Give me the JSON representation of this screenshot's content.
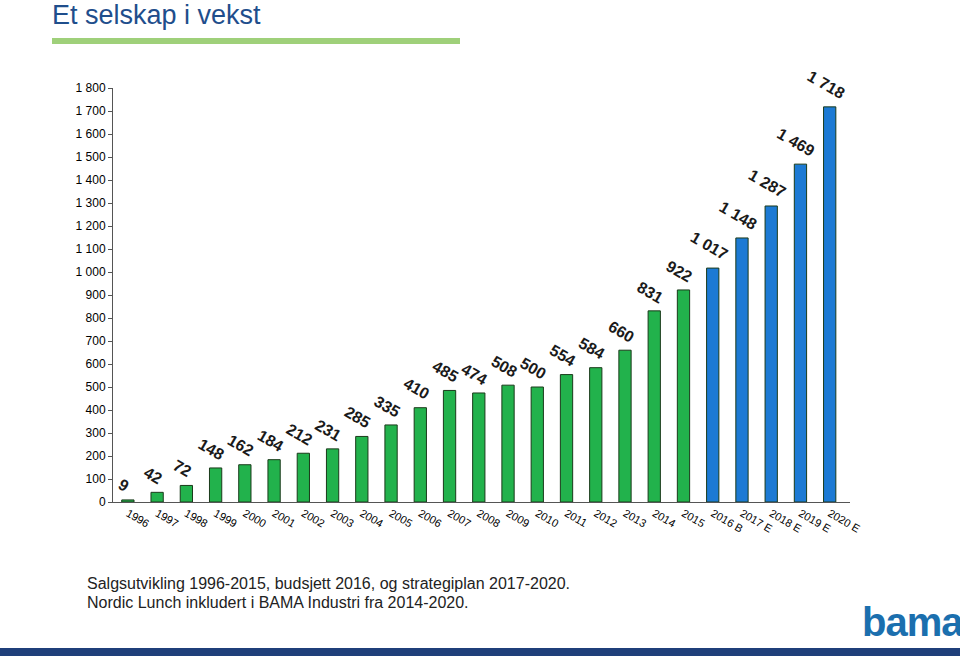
{
  "chart_data": {
    "type": "bar",
    "title": "Et selskap i vekst",
    "footnote": [
      "Salgsutvikling 1996-2015, budsjett 2016, og strategiplan 2017-2020.",
      "Nordic Lunch inkludert i BAMA Industri fra 2014-2020."
    ],
    "logo": "bama",
    "categories": [
      "1996",
      "1997",
      "1998",
      "1999",
      "2000",
      "2001",
      "2002",
      "2003",
      "2004",
      "2005",
      "2006",
      "2007",
      "2008",
      "2009",
      "2010",
      "2011",
      "2012",
      "2013",
      "2014",
      "2015",
      "2016 B",
      "2017 E",
      "2018 E",
      "2019 E",
      "2020 E"
    ],
    "values": [
      9,
      42,
      72,
      148,
      162,
      184,
      212,
      231,
      285,
      335,
      410,
      485,
      474,
      508,
      500,
      554,
      584,
      660,
      831,
      922,
      1017,
      1148,
      1287,
      1469,
      1718
    ],
    "value_labels": [
      "9",
      "42",
      "72",
      "148",
      "162",
      "184",
      "212",
      "231",
      "285",
      "335",
      "410",
      "485",
      "474",
      "508",
      "500",
      "554",
      "584",
      "660",
      "831",
      "922",
      "1 017",
      "1 148",
      "1 287",
      "1 469",
      "1 718"
    ],
    "colors": [
      "#22b24c",
      "#22b24c",
      "#22b24c",
      "#22b24c",
      "#22b24c",
      "#22b24c",
      "#22b24c",
      "#22b24c",
      "#22b24c",
      "#22b24c",
      "#22b24c",
      "#22b24c",
      "#22b24c",
      "#22b24c",
      "#22b24c",
      "#22b24c",
      "#22b24c",
      "#22b24c",
      "#22b24c",
      "#22b24c",
      "#1c7ad4",
      "#1c7ad4",
      "#1c7ad4",
      "#1c7ad4",
      "#1c7ad4"
    ],
    "data_labels": true,
    "grid": false,
    "ylim": [
      0,
      1800
    ],
    "yticks": [
      0,
      100,
      200,
      300,
      400,
      500,
      600,
      700,
      800,
      900,
      {
        "value": 1000,
        "label": "1 000"
      },
      {
        "value": 1100,
        "label": "1 100"
      },
      {
        "value": 1200,
        "label": "1 200"
      },
      {
        "value": 1300,
        "label": "1 300"
      },
      {
        "value": 1400,
        "label": "1 400"
      },
      {
        "value": 1500,
        "label": "1 500"
      },
      {
        "value": 1600,
        "label": "1 600"
      },
      {
        "value": 1700,
        "label": "1 700"
      },
      {
        "value": 1800,
        "label": "1 800"
      }
    ]
  }
}
